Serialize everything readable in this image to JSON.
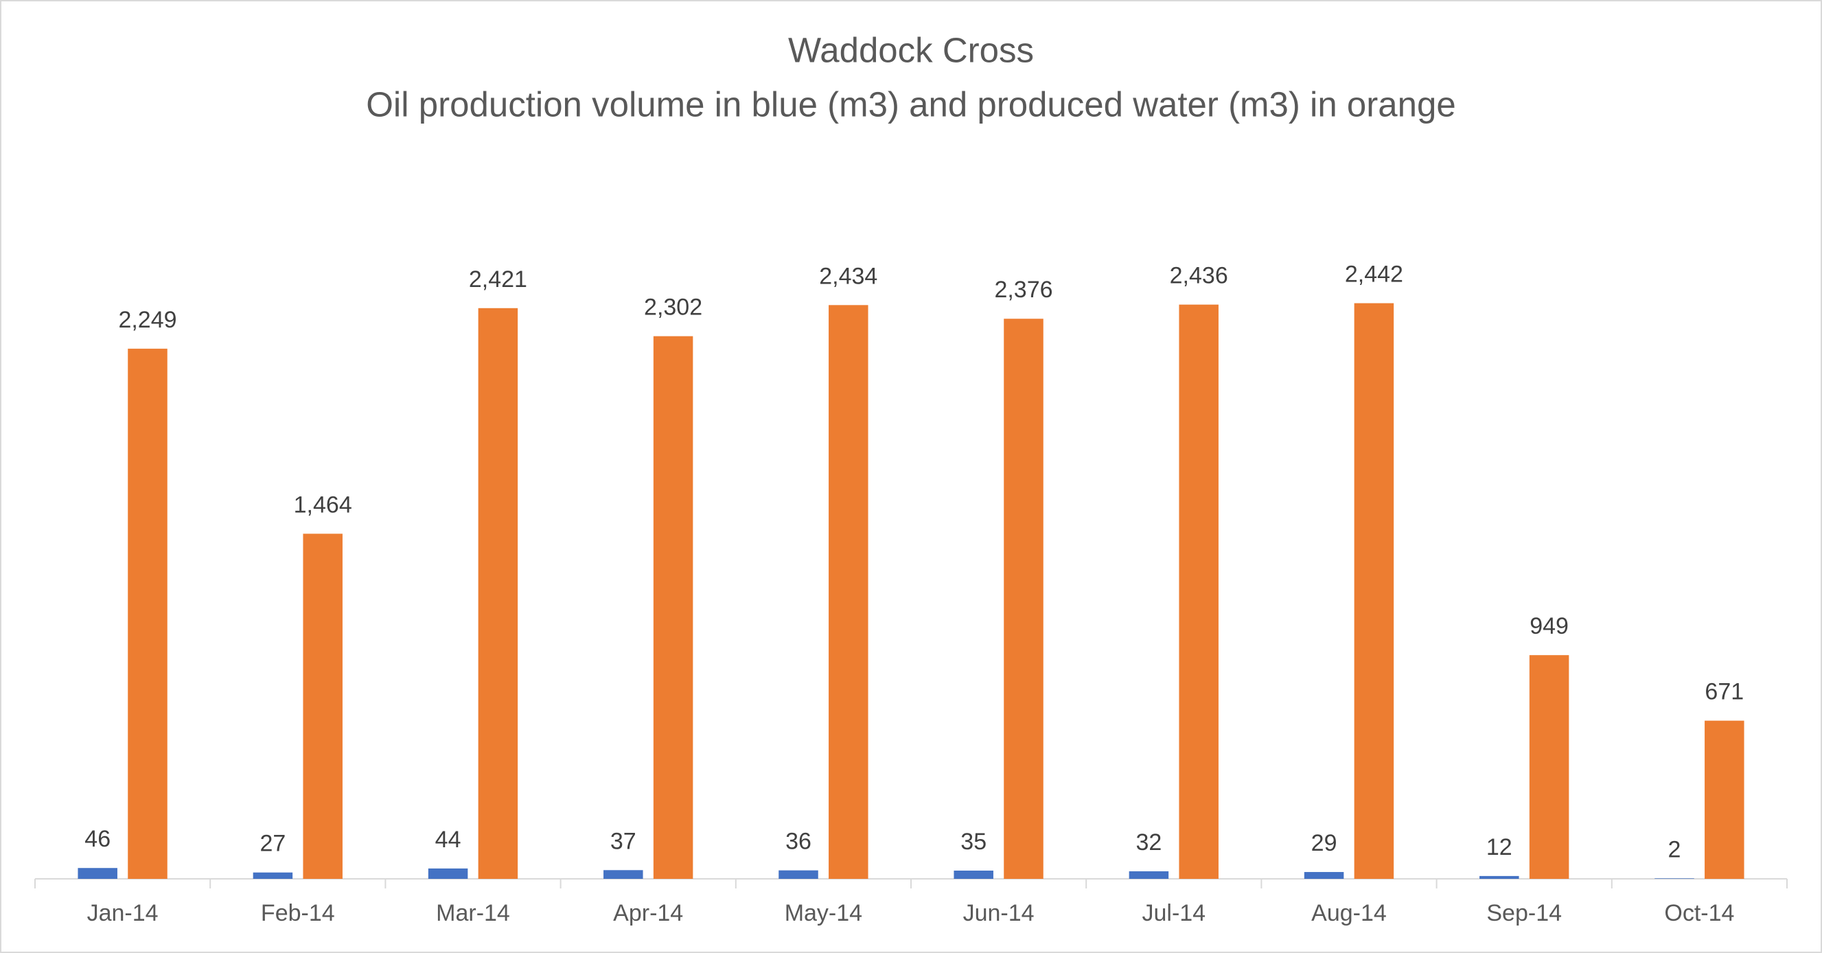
{
  "chart_data": {
    "type": "bar",
    "title": "Waddock Cross",
    "subtitle": "Oil production volume in blue (m3) and produced water (m3) in orange",
    "categories": [
      "Jan-14",
      "Feb-14",
      "Mar-14",
      "Apr-14",
      "May-14",
      "Jun-14",
      "Jul-14",
      "Aug-14",
      "Sep-14",
      "Oct-14"
    ],
    "series": [
      {
        "color": "#4472c4",
        "values": [
          46,
          27,
          44,
          37,
          36,
          35,
          32,
          29,
          12,
          2
        ]
      },
      {
        "color": "#ed7d31",
        "values": [
          2249,
          1464,
          2421,
          2302,
          2434,
          2376,
          2436,
          2442,
          949,
          671
        ],
        "value_labels": [
          "2,249",
          "1,464",
          "2,421",
          "2,302",
          "2,434",
          "2,376",
          "2,436",
          "2,442",
          "949",
          "671"
        ]
      }
    ],
    "ylim": [
      0,
      3000
    ]
  }
}
